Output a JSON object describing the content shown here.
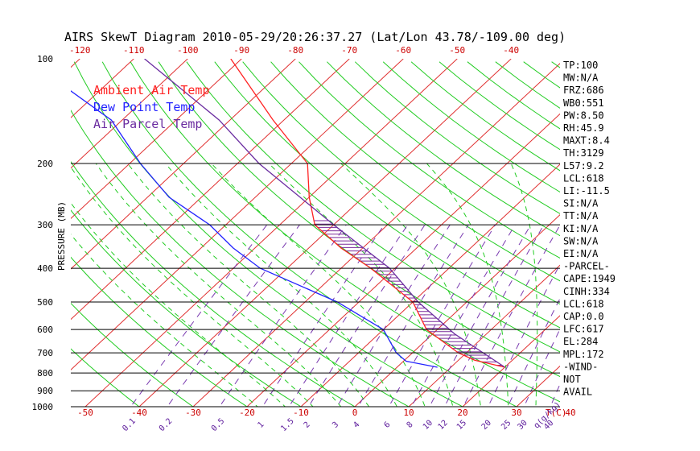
{
  "chart_data": {
    "type": "line",
    "title": "AIRS SkewT Diagram 2010-05-29/20:26:37.27 (Lat/Lon 43.78/-109.00 deg)",
    "ylabel": "PRESSURE (MB)",
    "xlabel": "T(C)",
    "mixing_label": "q(g/kg)",
    "y_scale": "log",
    "ylim": [
      1000,
      100
    ],
    "xlim": [
      -52,
      45
    ],
    "pressure_ticks": [
      {
        "p": 100,
        "label": "100"
      },
      {
        "p": 200,
        "label": "200"
      },
      {
        "p": 300,
        "label": "300"
      },
      {
        "p": 400,
        "label": "400"
      },
      {
        "p": 500,
        "label": "500"
      },
      {
        "p": 600,
        "label": "600"
      },
      {
        "p": 700,
        "label": "700"
      },
      {
        "p": 800,
        "label": "800"
      },
      {
        "p": 900,
        "label": "900"
      },
      {
        "p": 1000,
        "label": "1000"
      }
    ],
    "bottom_temp_ticks": [
      {
        "t": -50,
        "label": "-50"
      },
      {
        "t": -40,
        "label": "-40"
      },
      {
        "t": -30,
        "label": "-30"
      },
      {
        "t": -20,
        "label": "-20"
      },
      {
        "t": -10,
        "label": "-10"
      },
      {
        "t": 0,
        "label": "0"
      },
      {
        "t": 10,
        "label": "10"
      },
      {
        "t": 20,
        "label": "20"
      },
      {
        "t": 30,
        "label": "30"
      },
      {
        "t": 40,
        "label": "40"
      }
    ],
    "top_temp_ticks": [
      {
        "t": -120,
        "label": "-120"
      },
      {
        "t": -110,
        "label": "-110"
      },
      {
        "t": -100,
        "label": "-100"
      },
      {
        "t": -90,
        "label": "-90"
      },
      {
        "t": -80,
        "label": "-80"
      },
      {
        "t": -70,
        "label": "-70"
      },
      {
        "t": -60,
        "label": "-60"
      },
      {
        "t": -50,
        "label": "-50"
      },
      {
        "t": -40,
        "label": "-40"
      }
    ],
    "mixing_ratio_labels": [
      "0.1",
      "0.2",
      "0.5",
      "1",
      "1.5",
      "2",
      "3",
      "4",
      "6",
      "8",
      "10",
      "12",
      "15",
      "20",
      "25",
      "30",
      "40"
    ],
    "legend": [
      {
        "label": "Ambient Air Temp",
        "color": "#ff2222"
      },
      {
        "label": "Dew Point Temp",
        "color": "#2222ff"
      },
      {
        "label": "Air Parcel Temp",
        "color": "#6a2ca0"
      }
    ],
    "series": [
      {
        "name": "Ambient Air Temp",
        "color": "#ff2222",
        "points": [
          {
            "p": 770,
            "t": 20.0
          },
          {
            "p": 735,
            "t": 13.0
          },
          {
            "p": 700,
            "t": 8.5
          },
          {
            "p": 600,
            "t": -2.0
          },
          {
            "p": 500,
            "t": -10.0
          },
          {
            "p": 400,
            "t": -24.5
          },
          {
            "p": 350,
            "t": -34.0
          },
          {
            "p": 300,
            "t": -43.5
          },
          {
            "p": 250,
            "t": -50.0
          },
          {
            "p": 200,
            "t": -57.0
          },
          {
            "p": 150,
            "t": -72.0
          },
          {
            "p": 100,
            "t": -92.0
          }
        ]
      },
      {
        "name": "Dew Point Temp",
        "color": "#2222ff",
        "points": [
          {
            "p": 770,
            "t": 7.5
          },
          {
            "p": 740,
            "t": 0.5
          },
          {
            "p": 700,
            "t": -3.0
          },
          {
            "p": 600,
            "t": -10.0
          },
          {
            "p": 500,
            "t": -24.0
          },
          {
            "p": 400,
            "t": -45.0
          },
          {
            "p": 350,
            "t": -54.0
          },
          {
            "p": 300,
            "t": -63.0
          },
          {
            "p": 250,
            "t": -76.0
          },
          {
            "p": 200,
            "t": -88.0
          },
          {
            "p": 150,
            "t": -102.0
          },
          {
            "p": 100,
            "t": -130.0
          }
        ]
      },
      {
        "name": "Air Parcel Temp",
        "color": "#6a2ca0",
        "points": [
          {
            "p": 770,
            "t": 20.0
          },
          {
            "p": 617,
            "t": 4.0
          },
          {
            "p": 500,
            "t": -9.0
          },
          {
            "p": 400,
            "t": -21.0
          },
          {
            "p": 300,
            "t": -40.0
          },
          {
            "p": 200,
            "t": -66.0
          },
          {
            "p": 150,
            "t": -82.0
          },
          {
            "p": 100,
            "t": -108.0
          }
        ]
      }
    ],
    "indices": [
      "TP:100",
      "MW:N/A",
      "FRZ:686",
      "WB0:551",
      "PW:8.50",
      "RH:45.9",
      "MAXT:8.4",
      "TH:3129",
      "L57:9.2",
      "LCL:618",
      "LI:-11.5",
      "SI:N/A",
      "TT:N/A",
      "KI:N/A",
      "SW:N/A",
      "EI:N/A",
      "-PARCEL-",
      "CAPE:1949",
      "CINH:334",
      "LCL:618",
      "CAP:0.0",
      "LFC:617",
      "EL:284",
      "MPL:172",
      "-WIND-",
      "NOT",
      "AVAIL"
    ]
  }
}
